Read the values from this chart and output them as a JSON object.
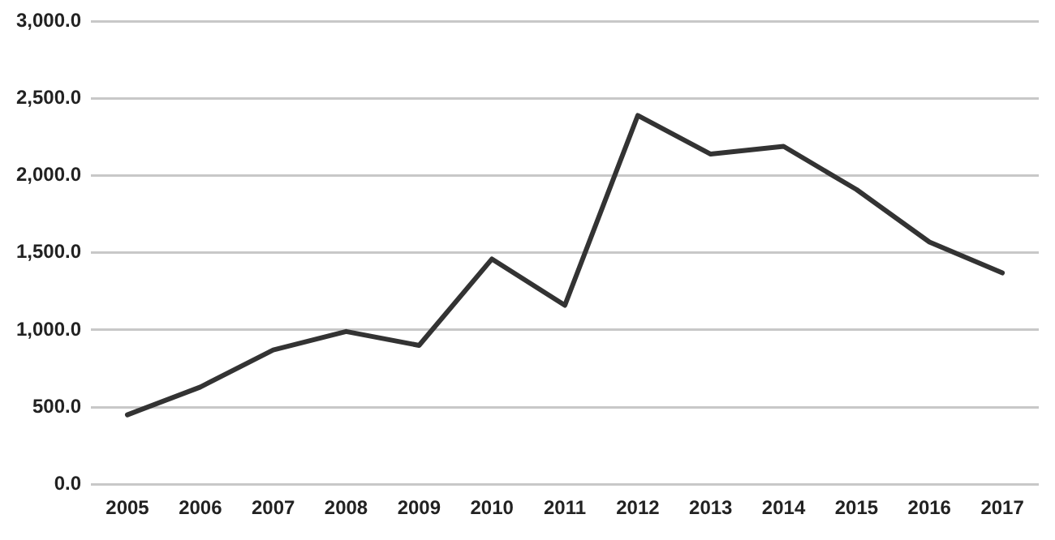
{
  "chart_data": {
    "type": "line",
    "categories": [
      "2005",
      "2006",
      "2007",
      "2008",
      "2009",
      "2010",
      "2011",
      "2012",
      "2013",
      "2014",
      "2015",
      "2016",
      "2017"
    ],
    "series": [
      {
        "color": "#333333",
        "values": [
          450,
          630,
          870,
          990,
          900,
          1460,
          1160,
          2390,
          2140,
          2190,
          1910,
          1570,
          1370
        ]
      }
    ],
    "ylim": [
      0,
      3000
    ],
    "yticks": [
      {
        "value": 0,
        "label": "0.0"
      },
      {
        "value": 500,
        "label": "500.0"
      },
      {
        "value": 1000,
        "label": "1,000.0"
      },
      {
        "value": 1500,
        "label": "1,500.0"
      },
      {
        "value": 2000,
        "label": "2,000.0"
      },
      {
        "value": 2500,
        "label": "2,500.0"
      },
      {
        "value": 3000,
        "label": "3,000.0"
      }
    ],
    "grid": "y",
    "legend": false,
    "marker": "none",
    "line_style": "solid"
  }
}
